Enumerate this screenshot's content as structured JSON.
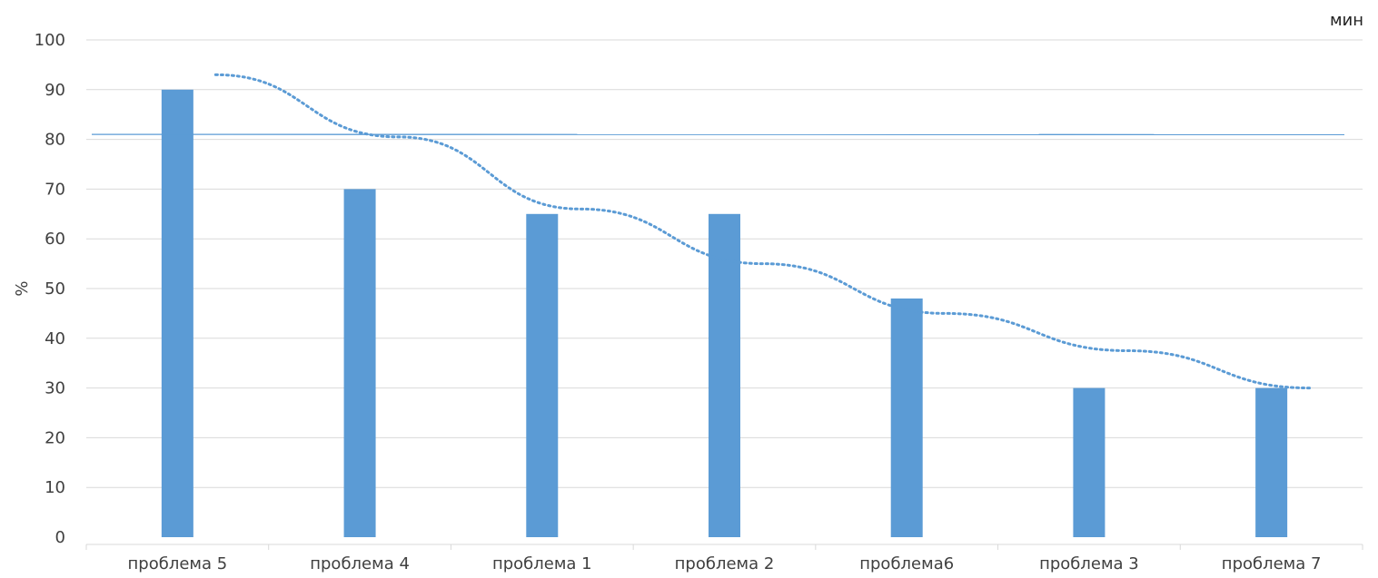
{
  "chart_data": {
    "type": "bar",
    "categories": [
      "проблема 5",
      "проблема 4",
      "проблема 1",
      "проблема 2",
      "проблема6",
      "проблема 3",
      "проблема 7"
    ],
    "series": [
      {
        "values": [
          90,
          70,
          65,
          65,
          48,
          30,
          30
        ],
        "color": "#5b9bd5"
      }
    ],
    "reference_line": {
      "value": 81,
      "color": "#5b9bd5",
      "style": "solid"
    },
    "trendline": {
      "style": "dotted",
      "color": "#5b9bd5",
      "values": [
        93,
        80.5,
        66,
        55,
        45,
        37.5,
        30
      ]
    },
    "title": "",
    "xlabel": "",
    "ylabel": "%",
    "unit_label": "мин",
    "ylim": [
      0,
      100
    ],
    "yticks": [
      0,
      10,
      20,
      30,
      40,
      50,
      60,
      70,
      80,
      90,
      100
    ],
    "grid": true,
    "legend": "none"
  }
}
